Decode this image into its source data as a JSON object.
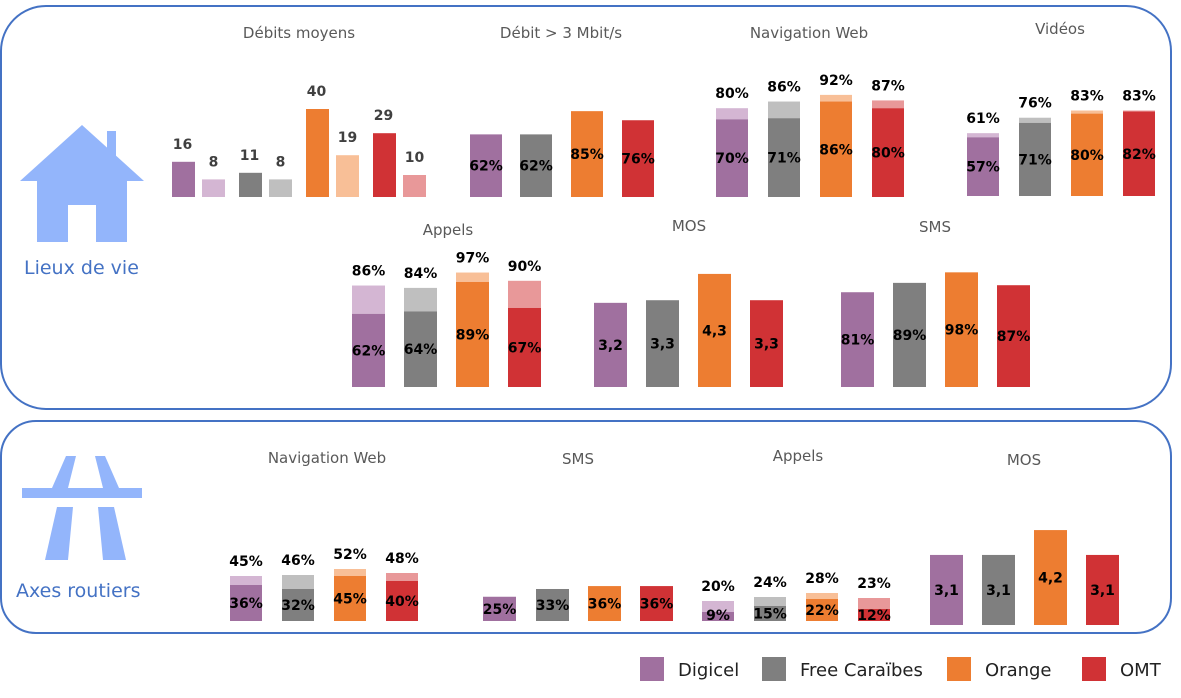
{
  "colors": {
    "Digicel": [
      "#a0709f",
      "#d4b6d3"
    ],
    "Free Caraïbes": [
      "#7f7f7f",
      "#bfbfbf"
    ],
    "Orange": [
      "#ed7d31",
      "#f8bf97"
    ],
    "OMT": [
      "#d03235",
      "#e89899"
    ]
  },
  "sections": {
    "top": "Lieux de vie",
    "bottom": "Axes routiers"
  },
  "legend": [
    "Digicel",
    "Free Caraïbes",
    "Orange",
    "OMT"
  ],
  "chart_data": [
    {
      "id": "debits",
      "section": "Lieux de vie",
      "type": "bar",
      "title": "Débits moyens",
      "series": [
        "Digicel",
        "Digicel",
        "Free Caraïbes",
        "Free Caraïbes",
        "Orange",
        "Orange",
        "OMT",
        "OMT"
      ],
      "shade": [
        0,
        1,
        0,
        1,
        0,
        1,
        0,
        1
      ],
      "values": [
        16,
        8,
        11,
        8,
        40,
        19,
        29,
        10
      ]
    },
    {
      "id": "debit3",
      "section": "Lieux de vie",
      "type": "bar",
      "title": "Débit > 3 Mbit/s",
      "series": [
        "Digicel",
        "Free Caraïbes",
        "Orange",
        "OMT"
      ],
      "values": [
        62,
        62,
        85,
        76
      ],
      "unit": "%"
    },
    {
      "id": "nav1",
      "section": "Lieux de vie",
      "type": "stacked-bar",
      "title": "Navigation Web",
      "series": [
        "Digicel",
        "Free Caraïbes",
        "Orange",
        "OMT"
      ],
      "inner": [
        70,
        71,
        86,
        80
      ],
      "total": [
        80,
        86,
        92,
        87
      ],
      "unit": "%"
    },
    {
      "id": "videos",
      "section": "Lieux de vie",
      "type": "stacked-bar",
      "title": "Vidéos",
      "series": [
        "Digicel",
        "Free Caraïbes",
        "Orange",
        "OMT"
      ],
      "inner": [
        57,
        71,
        80,
        82
      ],
      "total": [
        61,
        76,
        83,
        83
      ],
      "unit": "%"
    },
    {
      "id": "appels1",
      "section": "Lieux de vie",
      "type": "stacked-bar",
      "title": "Appels",
      "series": [
        "Digicel",
        "Free Caraïbes",
        "Orange",
        "OMT"
      ],
      "inner": [
        62,
        64,
        89,
        67
      ],
      "total": [
        86,
        84,
        97,
        90
      ],
      "unit": "%"
    },
    {
      "id": "mos1",
      "section": "Lieux de vie",
      "type": "bar",
      "title": "MOS",
      "series": [
        "Digicel",
        "Free Caraïbes",
        "Orange",
        "OMT"
      ],
      "values": [
        "3,2",
        "3,3",
        "4,3",
        "3,3"
      ]
    },
    {
      "id": "sms1",
      "section": "Lieux de vie",
      "type": "bar",
      "title": "SMS",
      "series": [
        "Digicel",
        "Free Caraïbes",
        "Orange",
        "OMT"
      ],
      "values": [
        81,
        89,
        98,
        87
      ],
      "unit": "%"
    },
    {
      "id": "nav2",
      "section": "Axes routiers",
      "type": "stacked-bar",
      "title": "Navigation Web",
      "series": [
        "Digicel",
        "Free Caraïbes",
        "Orange",
        "OMT"
      ],
      "inner": [
        36,
        32,
        45,
        40
      ],
      "total": [
        45,
        46,
        52,
        48
      ],
      "unit": "%"
    },
    {
      "id": "sms2",
      "section": "Axes routiers",
      "type": "bar",
      "title": "SMS",
      "series": [
        "Digicel",
        "Free Caraïbes",
        "Orange",
        "OMT"
      ],
      "values": [
        25,
        33,
        36,
        36
      ],
      "unit": "%"
    },
    {
      "id": "appels2",
      "section": "Axes routiers",
      "type": "stacked-bar",
      "title": "Appels",
      "series": [
        "Digicel",
        "Free Caraïbes",
        "Orange",
        "OMT"
      ],
      "inner": [
        9,
        15,
        22,
        12
      ],
      "total": [
        20,
        24,
        28,
        23
      ],
      "unit": "%"
    },
    {
      "id": "mos2",
      "section": "Axes routiers",
      "type": "bar",
      "title": "MOS",
      "series": [
        "Digicel",
        "Free Caraïbes",
        "Orange",
        "OMT"
      ],
      "values": [
        "3,1",
        "3,1",
        "4,2",
        "3,1"
      ]
    }
  ]
}
